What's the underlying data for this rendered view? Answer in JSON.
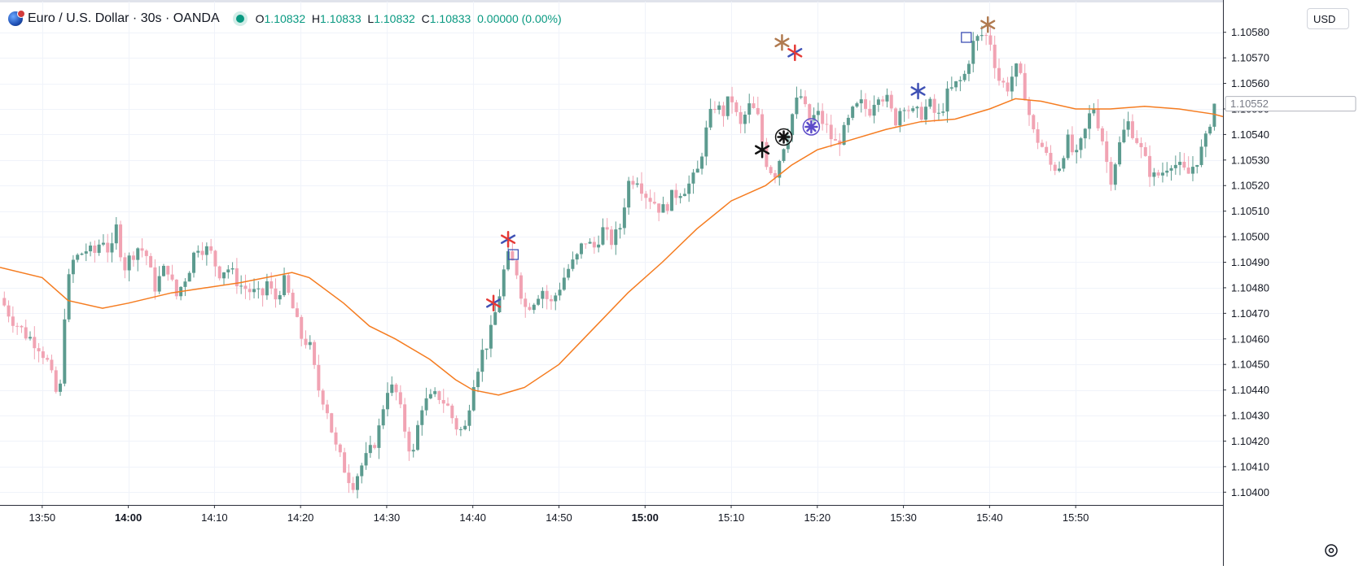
{
  "header": {
    "symbol_title": "Euro / U.S. Dollar · 30s · OANDA",
    "open_label": "O",
    "open_value": "1.10832",
    "high_label": "H",
    "high_value": "1.10833",
    "low_label": "L",
    "low_value": "1.10832",
    "close_label": "C",
    "close_value": "1.10833",
    "change": "0.00000 (0.00%)"
  },
  "price_scale": {
    "currency_button": "USD",
    "current_price_label": "1.10552"
  },
  "colors": {
    "up": "#5c9b8f",
    "down": "#f1a3b3",
    "ma_line": "#f57c20",
    "grid": "#f0f3fa",
    "current_price_box": "#b2b5be",
    "status_dot": "#089981"
  },
  "icons": [
    "symbol-logo-icon",
    "market-status-icon",
    "settings-icon"
  ],
  "chart_data": {
    "type": "candlestick",
    "title": "Euro / U.S. Dollar · 30s · OANDA",
    "ylim": [
      1.10395,
      1.10592
    ],
    "yticks": [
      "1.10580",
      "1.10570",
      "1.10560",
      "1.10550",
      "1.10540",
      "1.10530",
      "1.10520",
      "1.10510",
      "1.10500",
      "1.10490",
      "1.10480",
      "1.10470",
      "1.10460",
      "1.10450",
      "1.10440",
      "1.10430",
      "1.10420",
      "1.10410",
      "1.10400"
    ],
    "xticks": [
      {
        "time": "13:50",
        "bold": false
      },
      {
        "time": "14:00",
        "bold": true
      },
      {
        "time": "14:10",
        "bold": false
      },
      {
        "time": "14:20",
        "bold": false
      },
      {
        "time": "14:30",
        "bold": false
      },
      {
        "time": "14:40",
        "bold": false
      },
      {
        "time": "14:50",
        "bold": false
      },
      {
        "time": "15:00",
        "bold": true
      },
      {
        "time": "15:10",
        "bold": false
      },
      {
        "time": "15:20",
        "bold": false
      },
      {
        "time": "15:30",
        "bold": false
      },
      {
        "time": "15:40",
        "bold": false
      },
      {
        "time": "15:50",
        "bold": false
      }
    ],
    "time_range_minutes": [
      -14.9,
      127.1
    ],
    "close_anchors": [
      [
        -14.9,
        1.10476
      ],
      [
        -13.5,
        1.10468
      ],
      [
        -12,
        1.10462
      ],
      [
        -10.5,
        1.10458
      ],
      [
        -9.5,
        1.10452
      ],
      [
        -8.5,
        1.1044
      ],
      [
        -8,
        1.10435
      ],
      [
        -7.3,
        1.10476
      ],
      [
        -6.5,
        1.1049
      ],
      [
        -5,
        1.10495
      ],
      [
        -4,
        1.10493
      ],
      [
        -3,
        1.105
      ],
      [
        -2,
        1.10492
      ],
      [
        -1.5,
        1.10505
      ],
      [
        -0.5,
        1.10488
      ],
      [
        1,
        1.10496
      ],
      [
        2,
        1.10494
      ],
      [
        3,
        1.1048
      ],
      [
        4.5,
        1.10489
      ],
      [
        5.5,
        1.10476
      ],
      [
        7,
        1.10487
      ],
      [
        8,
        1.10497
      ],
      [
        9.5,
        1.10494
      ],
      [
        10.5,
        1.10486
      ],
      [
        11.5,
        1.10488
      ],
      [
        13,
        1.10481
      ],
      [
        14.5,
        1.10478
      ],
      [
        15.5,
        1.10476
      ],
      [
        16,
        1.10483
      ],
      [
        17,
        1.10475
      ],
      [
        18,
        1.10483
      ],
      [
        19,
        1.10473
      ],
      [
        20,
        1.10461
      ],
      [
        21,
        1.10458
      ],
      [
        22,
        1.10441
      ],
      [
        23,
        1.10434
      ],
      [
        24,
        1.10418
      ],
      [
        25,
        1.1041
      ],
      [
        26,
        1.10403
      ],
      [
        27,
        1.1041
      ],
      [
        28,
        1.10415
      ],
      [
        29,
        1.10423
      ],
      [
        30,
        1.10441
      ],
      [
        31,
        1.1044
      ],
      [
        32,
        1.10426
      ],
      [
        33,
        1.10413
      ],
      [
        34,
        1.10434
      ],
      [
        35,
        1.10436
      ],
      [
        36,
        1.10438
      ],
      [
        37,
        1.10434
      ],
      [
        38,
        1.10426
      ],
      [
        39,
        1.10423
      ],
      [
        40,
        1.10443
      ],
      [
        41,
        1.10454
      ],
      [
        42,
        1.10461
      ],
      [
        43,
        1.10476
      ],
      [
        43.5,
        1.10485
      ],
      [
        44,
        1.10492
      ],
      [
        45,
        1.10488
      ],
      [
        46,
        1.10472
      ],
      [
        47,
        1.10475
      ],
      [
        48,
        1.1048
      ],
      [
        49,
        1.10473
      ],
      [
        50,
        1.1048
      ],
      [
        51,
        1.10487
      ],
      [
        52,
        1.10491
      ],
      [
        53,
        1.10499
      ],
      [
        54,
        1.10495
      ],
      [
        55,
        1.10503
      ],
      [
        56,
        1.10498
      ],
      [
        57,
        1.10502
      ],
      [
        58,
        1.10521
      ],
      [
        59,
        1.10524
      ],
      [
        60,
        1.10517
      ],
      [
        61,
        1.10514
      ],
      [
        62,
        1.1051
      ],
      [
        63,
        1.10515
      ],
      [
        64,
        1.10518
      ],
      [
        65,
        1.1052
      ],
      [
        66,
        1.10524
      ],
      [
        67,
        1.1054
      ],
      [
        68,
        1.10552
      ],
      [
        69,
        1.10548
      ],
      [
        70,
        1.10555
      ],
      [
        71,
        1.10542
      ],
      [
        72,
        1.10551
      ],
      [
        73,
        1.10548
      ],
      [
        74,
        1.1053
      ],
      [
        75,
        1.10524
      ],
      [
        76,
        1.10535
      ],
      [
        77,
        1.10547
      ],
      [
        78,
        1.10556
      ],
      [
        79,
        1.10545
      ],
      [
        80,
        1.10548
      ],
      [
        81,
        1.10543
      ],
      [
        82,
        1.10536
      ],
      [
        83,
        1.1054
      ],
      [
        84,
        1.10548
      ],
      [
        85,
        1.10552
      ],
      [
        86,
        1.10549
      ],
      [
        87,
        1.10557
      ],
      [
        88,
        1.10554
      ],
      [
        89,
        1.10545
      ],
      [
        90,
        1.10553
      ],
      [
        91,
        1.10548
      ],
      [
        92,
        1.10548
      ],
      [
        93,
        1.10552
      ],
      [
        94,
        1.10546
      ],
      [
        95,
        1.10555
      ],
      [
        96,
        1.10559
      ],
      [
        97,
        1.10562
      ],
      [
        98,
        1.10575
      ],
      [
        99,
        1.10579
      ],
      [
        100,
        1.10578
      ],
      [
        101,
        1.10562
      ],
      [
        102,
        1.10558
      ],
      [
        103,
        1.10566
      ],
      [
        104,
        1.10558
      ],
      [
        105,
        1.10541
      ],
      [
        106,
        1.10536
      ],
      [
        107,
        1.10528
      ],
      [
        108,
        1.10527
      ],
      [
        109,
        1.10538
      ],
      [
        110,
        1.1053
      ],
      [
        111,
        1.1054
      ],
      [
        112,
        1.10552
      ],
      [
        113,
        1.1054
      ],
      [
        114,
        1.10522
      ],
      [
        115,
        1.10535
      ],
      [
        116,
        1.10545
      ],
      [
        117,
        1.10539
      ],
      [
        118,
        1.1053
      ],
      [
        119,
        1.10523
      ],
      [
        120,
        1.10525
      ],
      [
        121,
        1.1053
      ],
      [
        122,
        1.10527
      ],
      [
        123,
        1.10524
      ],
      [
        124,
        1.1053
      ],
      [
        125,
        1.10536
      ],
      [
        126,
        1.10552
      ]
    ],
    "ma_series": {
      "style": "moving-average line",
      "points": [
        [
          -14.9,
          1.10488
        ],
        [
          -10,
          1.10484
        ],
        [
          -7,
          1.10475
        ],
        [
          -3,
          1.10472
        ],
        [
          0,
          1.10474
        ],
        [
          5,
          1.10478
        ],
        [
          9,
          1.1048
        ],
        [
          13,
          1.10482
        ],
        [
          16,
          1.10484
        ],
        [
          19,
          1.10486
        ],
        [
          21,
          1.10484
        ],
        [
          25,
          1.10474
        ],
        [
          28,
          1.10465
        ],
        [
          31,
          1.1046
        ],
        [
          35,
          1.10452
        ],
        [
          38,
          1.10444
        ],
        [
          40,
          1.1044
        ],
        [
          43,
          1.10438
        ],
        [
          46,
          1.10441
        ],
        [
          50,
          1.1045
        ],
        [
          54,
          1.10464
        ],
        [
          58,
          1.10478
        ],
        [
          62,
          1.1049
        ],
        [
          66,
          1.10503
        ],
        [
          70,
          1.10514
        ],
        [
          74,
          1.1052
        ],
        [
          77,
          1.10528
        ],
        [
          80,
          1.10534
        ],
        [
          84,
          1.10538
        ],
        [
          88,
          1.10542
        ],
        [
          92,
          1.10545
        ],
        [
          96,
          1.10546
        ],
        [
          100,
          1.1055
        ],
        [
          103,
          1.10554
        ],
        [
          106,
          1.10553
        ],
        [
          110,
          1.1055
        ],
        [
          114,
          1.1055
        ],
        [
          118,
          1.10551
        ],
        [
          122,
          1.1055
        ],
        [
          126,
          1.10548
        ],
        [
          127.1,
          1.10547
        ]
      ]
    },
    "annotations": [
      {
        "type": "asterisk",
        "t": 42.4,
        "price": 1.10474,
        "color": "#e53935",
        "accent": "#3f51b5"
      },
      {
        "type": "asterisk",
        "t": 44.1,
        "price": 1.10499,
        "color": "#e53935",
        "accent": "#3f51b5"
      },
      {
        "type": "square",
        "t": 44.7,
        "price": 1.10493,
        "color": "#3f51b5"
      },
      {
        "type": "asterisk",
        "t": 77.4,
        "price": 1.10572,
        "color": "#e53935",
        "accent": "#3f51b5"
      },
      {
        "type": "asterisk",
        "t": 75.9,
        "price": 1.10576,
        "color": "#b07a4f",
        "accent": "#b07a4f"
      },
      {
        "type": "asterisk",
        "t": 73.6,
        "price": 1.10534,
        "color": "#111111",
        "accent": "#111111"
      },
      {
        "type": "circled-asterisk",
        "t": 76.1,
        "price": 1.10539,
        "color": "#111111"
      },
      {
        "type": "circled-asterisk",
        "t": 79.3,
        "price": 1.10543,
        "color": "#5c4bc9"
      },
      {
        "type": "asterisk",
        "t": 91.7,
        "price": 1.10557,
        "color": "#3f51b5",
        "accent": "#3f51b5"
      },
      {
        "type": "square",
        "t": 97.3,
        "price": 1.10578,
        "color": "#3f51b5"
      },
      {
        "type": "asterisk",
        "t": 99.8,
        "price": 1.10583,
        "color": "#b07a4f",
        "accent": "#b07a4f"
      }
    ]
  }
}
